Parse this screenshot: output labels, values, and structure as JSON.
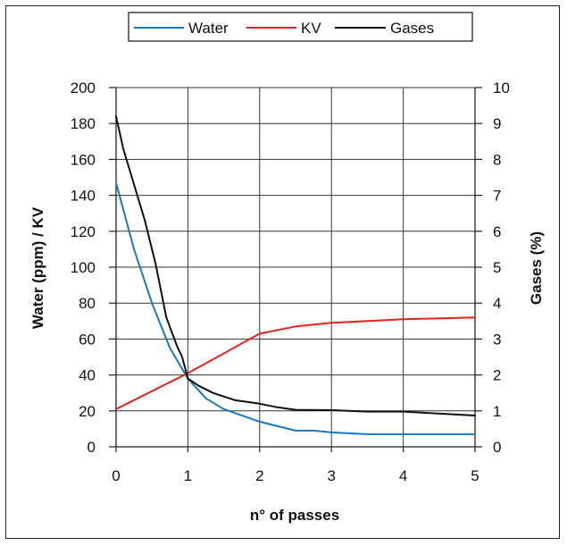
{
  "chart_data": {
    "type": "line",
    "title": "",
    "xlabel": "n° of passes",
    "ylabel_left": "Water (ppm) / KV",
    "ylabel_right": "Gases (%)",
    "xlim": [
      0,
      5
    ],
    "ylim_left": [
      0,
      200
    ],
    "ylim_right": [
      0,
      10
    ],
    "x_ticks": [
      "0",
      "1",
      "2",
      "3",
      "4",
      "5"
    ],
    "y_left_ticks": [
      "0",
      "20",
      "40",
      "60",
      "80",
      "100",
      "120",
      "140",
      "160",
      "180",
      "200"
    ],
    "y_right_ticks": [
      "0",
      "1",
      "2",
      "3",
      "4",
      "5",
      "6",
      "7",
      "8",
      "9",
      "10"
    ],
    "grid": true,
    "legend_position": "top-center",
    "series": [
      {
        "name": "Water",
        "axis": "left",
        "color": "#1a78c2",
        "x": [
          0,
          0.25,
          0.5,
          0.75,
          1.0,
          1.25,
          1.5,
          2.0,
          2.5,
          2.75,
          3.0,
          3.5,
          4.0,
          5.0
        ],
        "y": [
          147,
          110,
          80,
          55,
          38,
          27,
          21,
          14,
          9,
          9,
          8,
          7,
          7,
          7
        ]
      },
      {
        "name": "KV",
        "axis": "left",
        "color": "#e0251b",
        "x": [
          0,
          0.5,
          1.0,
          1.5,
          2.0,
          2.5,
          3.0,
          3.5,
          4.0,
          5.0
        ],
        "y": [
          21,
          31,
          41,
          52,
          63,
          67,
          69,
          70,
          71,
          72
        ]
      },
      {
        "name": "Gases",
        "axis": "right",
        "color": "#111111",
        "x": [
          0,
          0.1,
          0.25,
          0.4,
          0.55,
          0.7,
          0.85,
          0.92,
          1.0,
          1.15,
          1.35,
          1.65,
          2.0,
          2.25,
          2.5,
          3.0,
          3.5,
          4.0,
          5.0
        ],
        "y": [
          9.2,
          8.3,
          7.3,
          6.3,
          5.1,
          3.6,
          2.8,
          2.5,
          1.9,
          1.7,
          1.5,
          1.3,
          1.2,
          1.1,
          1.03,
          1.02,
          0.98,
          0.98,
          0.87
        ]
      }
    ]
  }
}
